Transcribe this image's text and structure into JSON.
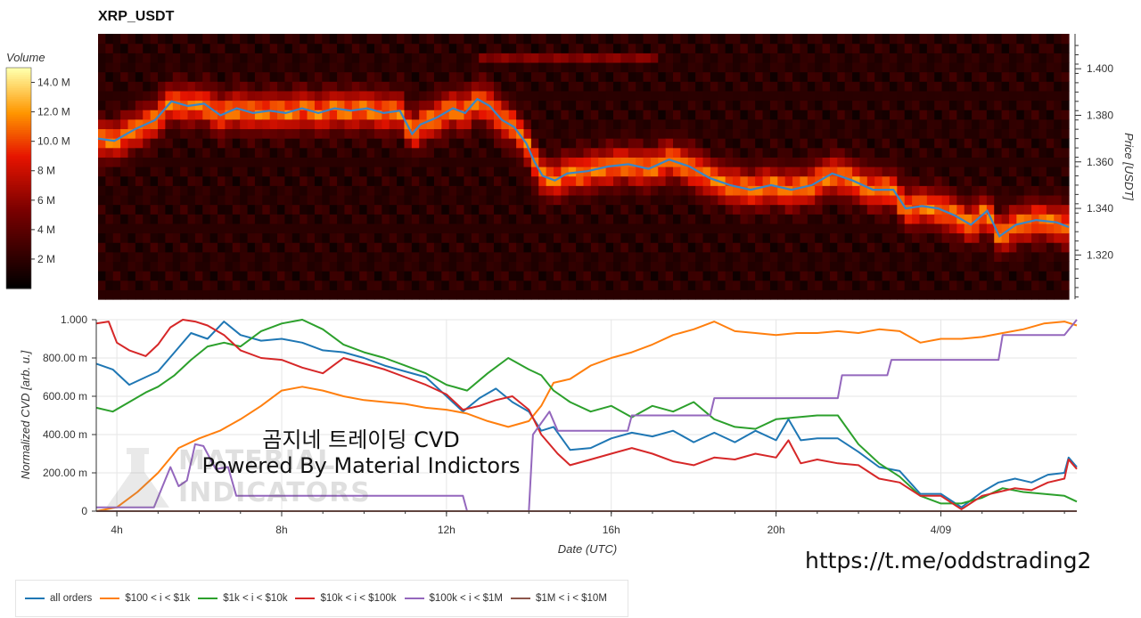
{
  "chart_data": [
    {
      "type": "heatmap",
      "title": "XRP_USDT",
      "colorbar": {
        "title": "Volume",
        "tick_labels": [
          "14.0 M",
          "12.0 M",
          "10.0 M",
          "8 M",
          "6 M",
          "4 M",
          "2 M"
        ],
        "tick_values": [
          14,
          12,
          10,
          8,
          6,
          4,
          2
        ],
        "range": [
          0,
          15
        ]
      },
      "ylabel": "Price [USDT]",
      "ylim": [
        1.301,
        1.415
      ],
      "y_ticks": [
        1.4,
        1.38,
        1.36,
        1.34,
        1.32
      ],
      "y_tick_labels": [
        "1.400",
        "1.380",
        "1.360",
        "1.340",
        "1.320"
      ],
      "xlim": [
        3.5,
        27.3
      ],
      "price_series_color": "#3a87c8",
      "price": {
        "x": [
          3.5,
          3.9,
          4.4,
          4.9,
          5.3,
          5.7,
          6.1,
          6.5,
          6.9,
          7.3,
          7.7,
          8.1,
          8.5,
          8.9,
          9.3,
          9.7,
          10.1,
          10.5,
          10.9,
          11.2,
          11.4,
          11.8,
          12.2,
          12.5,
          12.8,
          13.1,
          13.4,
          13.7,
          14.0,
          14.2,
          14.4,
          14.7,
          15.0,
          15.5,
          16.0,
          16.5,
          17.0,
          17.5,
          18.0,
          18.5,
          19.0,
          19.5,
          20.0,
          20.5,
          21.0,
          21.5,
          22.0,
          22.5,
          23.0,
          23.3,
          23.7,
          24.1,
          24.5,
          24.9,
          25.3,
          25.6,
          26.0,
          26.5,
          27.0,
          27.3
        ],
        "y": [
          1.37,
          1.369,
          1.374,
          1.378,
          1.386,
          1.384,
          1.385,
          1.38,
          1.383,
          1.381,
          1.382,
          1.381,
          1.383,
          1.381,
          1.383,
          1.382,
          1.383,
          1.381,
          1.382,
          1.372,
          1.376,
          1.379,
          1.383,
          1.381,
          1.387,
          1.384,
          1.378,
          1.375,
          1.368,
          1.36,
          1.354,
          1.352,
          1.355,
          1.356,
          1.358,
          1.359,
          1.357,
          1.361,
          1.358,
          1.353,
          1.35,
          1.348,
          1.35,
          1.348,
          1.35,
          1.355,
          1.352,
          1.348,
          1.348,
          1.34,
          1.341,
          1.34,
          1.337,
          1.333,
          1.339,
          1.328,
          1.333,
          1.335,
          1.334,
          1.332
        ]
      }
    },
    {
      "type": "line",
      "ylabel": "Normalized CVD [arb. u.]",
      "xlabel": "Date (UTC)",
      "ylim": [
        0,
        1
      ],
      "y_ticks": [
        0,
        0.2,
        0.4,
        0.6,
        0.8,
        1.0
      ],
      "y_tick_labels": [
        "0",
        "200.00 m",
        "400.00 m",
        "600.00 m",
        "800.00 m",
        "1.000"
      ],
      "xlim": [
        3.5,
        27.3
      ],
      "x_ticks": [
        4,
        8,
        12,
        16,
        20,
        24
      ],
      "x_tick_labels": [
        "4h",
        "8h",
        "12h",
        "16h",
        "20h",
        "4/09"
      ],
      "series": [
        {
          "name": "all orders",
          "color": "#1f77b4",
          "x": [
            3.5,
            3.9,
            4.3,
            4.7,
            5.0,
            5.4,
            5.8,
            6.2,
            6.6,
            7.0,
            7.5,
            8.0,
            8.5,
            9.0,
            9.5,
            10.0,
            10.5,
            11.0,
            11.5,
            12.0,
            12.4,
            12.8,
            13.2,
            13.6,
            14.0,
            14.3,
            14.6,
            15.0,
            15.5,
            16.0,
            16.5,
            17.0,
            17.5,
            18.0,
            18.5,
            19.0,
            19.5,
            20.0,
            20.3,
            20.6,
            21.0,
            21.5,
            22.0,
            22.5,
            23.0,
            23.5,
            24.0,
            24.5,
            25.0,
            25.4,
            25.8,
            26.2,
            26.6,
            27.0,
            27.1,
            27.3
          ],
          "y": [
            0.77,
            0.74,
            0.66,
            0.7,
            0.73,
            0.83,
            0.93,
            0.9,
            0.99,
            0.92,
            0.89,
            0.9,
            0.88,
            0.84,
            0.83,
            0.8,
            0.76,
            0.73,
            0.7,
            0.6,
            0.52,
            0.59,
            0.64,
            0.57,
            0.52,
            0.42,
            0.44,
            0.32,
            0.33,
            0.38,
            0.41,
            0.39,
            0.42,
            0.36,
            0.41,
            0.36,
            0.42,
            0.37,
            0.48,
            0.37,
            0.38,
            0.38,
            0.31,
            0.23,
            0.21,
            0.09,
            0.09,
            0.02,
            0.1,
            0.15,
            0.17,
            0.15,
            0.19,
            0.2,
            0.28,
            0.23
          ]
        },
        {
          "name": "$100 < i < $1k",
          "color": "#ff7f0e",
          "x": [
            3.5,
            4.0,
            4.5,
            5.0,
            5.5,
            6.0,
            6.5,
            7.0,
            7.5,
            8.0,
            8.5,
            9.0,
            9.5,
            10.0,
            10.5,
            11.0,
            11.5,
            12.0,
            12.5,
            13.0,
            13.5,
            14.0,
            14.3,
            14.6,
            15.0,
            15.5,
            16.0,
            16.5,
            17.0,
            17.5,
            18.0,
            18.5,
            19.0,
            19.5,
            20.0,
            20.5,
            21.0,
            21.5,
            22.0,
            22.5,
            23.0,
            23.5,
            24.0,
            24.5,
            25.0,
            25.5,
            26.0,
            26.5,
            27.0,
            27.3
          ],
          "y": [
            0.0,
            0.02,
            0.1,
            0.2,
            0.33,
            0.38,
            0.42,
            0.48,
            0.55,
            0.63,
            0.65,
            0.63,
            0.6,
            0.58,
            0.57,
            0.56,
            0.54,
            0.53,
            0.51,
            0.47,
            0.44,
            0.47,
            0.55,
            0.67,
            0.69,
            0.76,
            0.8,
            0.83,
            0.87,
            0.92,
            0.95,
            0.99,
            0.94,
            0.93,
            0.92,
            0.93,
            0.93,
            0.94,
            0.93,
            0.95,
            0.94,
            0.88,
            0.9,
            0.9,
            0.91,
            0.93,
            0.95,
            0.98,
            0.99,
            0.97
          ]
        },
        {
          "name": "$1k < i < $10k",
          "color": "#2ca02c",
          "x": [
            3.5,
            3.9,
            4.3,
            4.7,
            5.0,
            5.4,
            5.8,
            6.2,
            6.6,
            7.0,
            7.5,
            8.0,
            8.5,
            9.0,
            9.5,
            10.0,
            10.5,
            11.0,
            11.5,
            12.0,
            12.5,
            13.0,
            13.5,
            14.0,
            14.3,
            14.6,
            15.0,
            15.5,
            16.0,
            16.5,
            17.0,
            17.5,
            18.0,
            18.5,
            19.0,
            19.5,
            20.0,
            20.5,
            21.0,
            21.5,
            22.0,
            22.5,
            23.0,
            23.5,
            24.0,
            24.5,
            25.0,
            25.5,
            26.0,
            26.5,
            27.0,
            27.3
          ],
          "y": [
            0.54,
            0.52,
            0.57,
            0.62,
            0.65,
            0.71,
            0.79,
            0.86,
            0.88,
            0.86,
            0.94,
            0.98,
            1.0,
            0.95,
            0.87,
            0.83,
            0.8,
            0.76,
            0.72,
            0.66,
            0.63,
            0.72,
            0.8,
            0.74,
            0.71,
            0.63,
            0.57,
            0.52,
            0.55,
            0.49,
            0.55,
            0.52,
            0.57,
            0.48,
            0.44,
            0.43,
            0.48,
            0.49,
            0.5,
            0.5,
            0.35,
            0.25,
            0.18,
            0.08,
            0.04,
            0.04,
            0.07,
            0.12,
            0.1,
            0.09,
            0.08,
            0.05
          ]
        },
        {
          "name": "$10k < i < $100k",
          "color": "#d62728",
          "x": [
            3.5,
            3.8,
            4.0,
            4.3,
            4.7,
            5.0,
            5.3,
            5.6,
            5.9,
            6.2,
            6.6,
            7.0,
            7.5,
            8.0,
            8.5,
            9.0,
            9.5,
            10.0,
            10.5,
            11.0,
            11.5,
            12.0,
            12.4,
            12.8,
            13.2,
            13.6,
            14.0,
            14.3,
            14.7,
            15.0,
            15.5,
            16.0,
            16.5,
            17.0,
            17.5,
            18.0,
            18.5,
            19.0,
            19.5,
            20.0,
            20.3,
            20.6,
            21.0,
            21.5,
            22.0,
            22.5,
            23.0,
            23.5,
            24.0,
            24.5,
            25.0,
            25.4,
            25.8,
            26.2,
            26.6,
            27.0,
            27.1,
            27.3
          ],
          "y": [
            0.98,
            0.99,
            0.88,
            0.84,
            0.81,
            0.87,
            0.96,
            1.0,
            0.99,
            0.97,
            0.92,
            0.84,
            0.8,
            0.79,
            0.75,
            0.72,
            0.8,
            0.77,
            0.74,
            0.7,
            0.66,
            0.61,
            0.53,
            0.55,
            0.58,
            0.6,
            0.53,
            0.4,
            0.3,
            0.24,
            0.27,
            0.3,
            0.33,
            0.3,
            0.26,
            0.24,
            0.28,
            0.27,
            0.3,
            0.28,
            0.37,
            0.25,
            0.27,
            0.25,
            0.24,
            0.17,
            0.15,
            0.08,
            0.08,
            0.01,
            0.08,
            0.1,
            0.12,
            0.11,
            0.15,
            0.17,
            0.27,
            0.22
          ]
        },
        {
          "name": "$100k < i < $1M",
          "color": "#9467bd",
          "x": [
            3.5,
            4.9,
            5.3,
            5.5,
            5.7,
            5.9,
            6.1,
            6.4,
            6.7,
            6.9,
            12.4,
            12.5,
            14.0,
            14.1,
            14.5,
            14.7,
            16.4,
            16.5,
            18.4,
            18.5,
            21.5,
            21.6,
            22.7,
            22.8,
            25.4,
            25.5,
            27.0,
            27.3
          ],
          "y": [
            0.02,
            0.02,
            0.23,
            0.13,
            0.16,
            0.35,
            0.34,
            0.22,
            0.23,
            0.08,
            0.08,
            0.0,
            0.0,
            0.4,
            0.52,
            0.42,
            0.42,
            0.5,
            0.5,
            0.59,
            0.59,
            0.71,
            0.71,
            0.79,
            0.79,
            0.92,
            0.92,
            1.0
          ]
        },
        {
          "name": "$1M < i < $10M",
          "color": "#8c564b",
          "x": [
            3.5,
            27.3
          ],
          "y": [
            0.0,
            0.0
          ]
        }
      ]
    }
  ],
  "overlay": {
    "line1": "곰지네 트레이딩 CVD",
    "line2": "Powered By Material Indictors"
  },
  "watermark": {
    "line1": "MATERIAL",
    "line2": "INDICATORS"
  },
  "telegram_link": "https://t.me/oddstrading2",
  "legend_items": [
    {
      "label": "all orders",
      "color": "#1f77b4"
    },
    {
      "label": "$100 < i < $1k",
      "color": "#ff7f0e"
    },
    {
      "label": "$1k < i < $10k",
      "color": "#2ca02c"
    },
    {
      "label": "$10k < i < $100k",
      "color": "#d62728"
    },
    {
      "label": "$100k < i < $1M",
      "color": "#9467bd"
    },
    {
      "label": "$1M < i < $10M",
      "color": "#8c564b"
    }
  ]
}
